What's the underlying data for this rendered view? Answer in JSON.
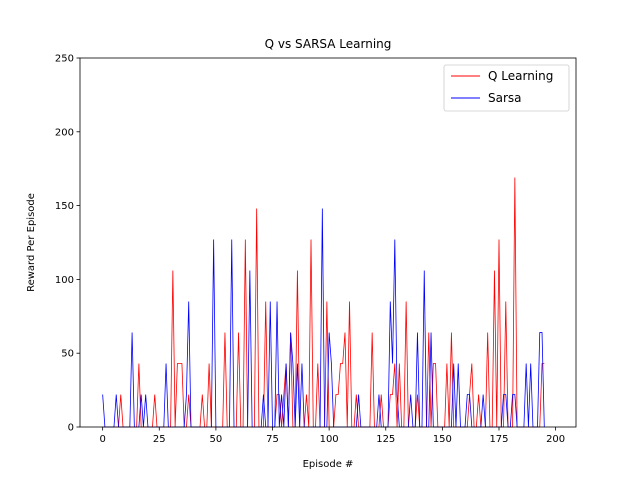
{
  "chart_data": {
    "type": "line",
    "title": "Q vs SARSA Learning",
    "xlabel": "Episode #",
    "ylabel": "Reward Per Episode",
    "xlim": [
      -10,
      209
    ],
    "ylim": [
      0,
      250
    ],
    "xticks": [
      0,
      25,
      50,
      75,
      100,
      125,
      150,
      175,
      200
    ],
    "yticks": [
      0,
      50,
      100,
      150,
      200,
      250
    ],
    "grid": false,
    "legend": "top-right",
    "x_start": 0,
    "x_step": 1,
    "series": [
      {
        "name": "Q Learning",
        "color": "#ff0000",
        "values": [
          0,
          0,
          0,
          0,
          0,
          0,
          0,
          0,
          22,
          0,
          0,
          0,
          0,
          0,
          0,
          0,
          43,
          0,
          0,
          0,
          0,
          0,
          0,
          22,
          0,
          0,
          0,
          0,
          0,
          0,
          0,
          106,
          0,
          43,
          43,
          43,
          0,
          0,
          22,
          0,
          0,
          0,
          0,
          0,
          22,
          0,
          0,
          43,
          0,
          0,
          0,
          0,
          0,
          0,
          64,
          0,
          0,
          0,
          0,
          0,
          64,
          0,
          0,
          127,
          0,
          0,
          0,
          0,
          148,
          0,
          0,
          0,
          85,
          0,
          0,
          0,
          0,
          22,
          22,
          0,
          22,
          43,
          0,
          64,
          0,
          0,
          106,
          0,
          0,
          0,
          22,
          0,
          127,
          0,
          0,
          43,
          0,
          0,
          0,
          85,
          0,
          0,
          0,
          22,
          22,
          43,
          43,
          64,
          0,
          85,
          0,
          0,
          22,
          0,
          0,
          0,
          0,
          0,
          0,
          64,
          0,
          0,
          0,
          22,
          0,
          0,
          0,
          22,
          22,
          43,
          0,
          43,
          0,
          0,
          85,
          0,
          0,
          0,
          0,
          22,
          0,
          0,
          0,
          0,
          64,
          0,
          43,
          43,
          0,
          0,
          0,
          0,
          43,
          0,
          64,
          0,
          0,
          0,
          0,
          0,
          0,
          0,
          22,
          43,
          0,
          0,
          22,
          0,
          0,
          0,
          64,
          0,
          0,
          106,
          0,
          127,
          0,
          0,
          85,
          0,
          0,
          0,
          169,
          0,
          0,
          0,
          0,
          0,
          0,
          0,
          0,
          0,
          0,
          0,
          43,
          43
        ]
      },
      {
        "name": "Sarsa",
        "color": "#0000ff",
        "values": [
          22,
          0,
          0,
          0,
          0,
          0,
          22,
          0,
          0,
          0,
          0,
          0,
          0,
          64,
          0,
          0,
          0,
          22,
          0,
          22,
          0,
          0,
          0,
          0,
          0,
          0,
          0,
          0,
          43,
          0,
          0,
          0,
          0,
          0,
          0,
          0,
          0,
          22,
          85,
          0,
          0,
          0,
          0,
          0,
          0,
          0,
          0,
          0,
          0,
          127,
          0,
          0,
          0,
          0,
          0,
          0,
          0,
          127,
          0,
          0,
          0,
          0,
          0,
          0,
          0,
          106,
          0,
          0,
          0,
          0,
          0,
          22,
          0,
          0,
          85,
          0,
          0,
          85,
          0,
          22,
          0,
          43,
          0,
          64,
          43,
          0,
          43,
          0,
          43,
          0,
          0,
          0,
          0,
          0,
          0,
          0,
          0,
          148,
          0,
          0,
          64,
          43,
          0,
          0,
          0,
          0,
          0,
          0,
          0,
          0,
          0,
          0,
          0,
          22,
          0,
          0,
          0,
          0,
          0,
          0,
          0,
          0,
          22,
          0,
          0,
          0,
          0,
          85,
          43,
          127,
          22,
          0,
          0,
          0,
          0,
          0,
          22,
          0,
          0,
          64,
          0,
          0,
          106,
          0,
          0,
          64,
          0,
          0,
          0,
          0,
          0,
          0,
          0,
          0,
          0,
          43,
          0,
          43,
          0,
          0,
          0,
          22,
          22,
          0,
          0,
          0,
          0,
          0,
          22,
          0,
          0,
          0,
          0,
          0,
          0,
          0,
          0,
          22,
          22,
          0,
          0,
          22,
          22,
          0,
          0,
          0,
          0,
          43,
          0,
          43,
          0,
          0,
          0,
          64,
          64,
          0
        ]
      }
    ]
  }
}
